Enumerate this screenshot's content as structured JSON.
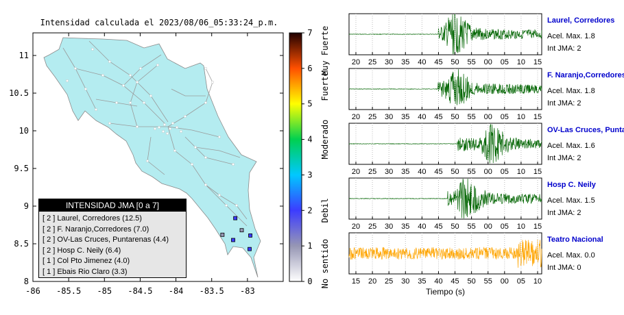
{
  "header": {
    "title": "Intensidad calculada el 2023/08/06_05:33:24_p.m."
  },
  "colors": {
    "land": "#b4ecf0",
    "wave_green": "#006400",
    "wave_orange": "#ffa500",
    "station_name": "#0000cc",
    "roads": "#9a9a9a"
  },
  "map": {
    "xlim": [
      -86,
      -82.5
    ],
    "ylim": [
      8,
      11.3
    ],
    "x_ticks": [
      "-86",
      "-85.5",
      "-85",
      "-84.5",
      "-84",
      "-83.5",
      "-83"
    ],
    "y_ticks": [
      "8",
      "8.5",
      "9",
      "9.5",
      "10",
      "10.5",
      "11"
    ]
  },
  "colorbar": {
    "range": [
      0,
      7
    ],
    "ticks": [
      "0",
      "1",
      "2",
      "3",
      "4",
      "5",
      "6",
      "7"
    ],
    "bands": [
      {
        "label": "No sentido",
        "center": 0.5
      },
      {
        "label": "Debil",
        "center": 2.0
      },
      {
        "label": "Moderado",
        "center": 4.0
      },
      {
        "label": "Fuerte",
        "center": 5.5
      },
      {
        "label": "Muy Fuerte",
        "center": 6.5
      }
    ]
  },
  "legend": {
    "title": "INTENSIDAD JMA [0 a 7]",
    "rows": [
      "[ 2 ]  Laurel, Corredores (12.5)",
      "[ 2 ]  F. Naranjo,Corredores (7.0)",
      "[ 2 ]  OV-Las Cruces, Puntarenas (4.4)",
      "[ 2 ]  Hosp C. Neily (6.4)",
      "[ 1 ]  Col Pto Jimenez (4.0)",
      "[ 1 ]  Ebais Rio Claro (3.3)"
    ]
  },
  "chart_data": [
    {
      "type": "scatter",
      "title": "Intensidad calculada el 2023/08/06_05:33:24_p.m.",
      "xlabel": "",
      "ylabel": "",
      "xlim": [
        -86,
        -82.5
      ],
      "ylim": [
        8,
        11.3
      ],
      "series": [
        {
          "name": "Laurel, Corredores",
          "x": [
            -82.97
          ],
          "y": [
            8.43
          ],
          "intensity": [
            2
          ]
        },
        {
          "name": "F. Naranjo,Corredores",
          "x": [
            -82.96
          ],
          "y": [
            8.61
          ],
          "intensity": [
            2
          ]
        },
        {
          "name": "OV-Las Cruces, Puntarenas",
          "x": [
            -83.17
          ],
          "y": [
            8.84
          ],
          "intensity": [
            2
          ]
        },
        {
          "name": "Hosp C. Neily",
          "x": [
            -83.2
          ],
          "y": [
            8.55
          ],
          "intensity": [
            2
          ]
        },
        {
          "name": "Col Pto Jimenez",
          "x": [
            -83.35
          ],
          "y": [
            8.62
          ],
          "intensity": [
            1
          ]
        },
        {
          "name": "Ebais Rio Claro",
          "x": [
            -83.08
          ],
          "y": [
            8.68
          ],
          "intensity": [
            1
          ]
        }
      ]
    },
    {
      "type": "line",
      "title": "Laurel, Corredores",
      "annotations": [
        "Acel. Max. 1.8",
        "Int JMA: 2"
      ],
      "xtick_labels": [
        "20",
        "25",
        "30",
        "35",
        "40",
        "45",
        "50",
        "55",
        "00",
        "05",
        "10",
        "15"
      ],
      "onset": 37,
      "peak_at": 43,
      "peak": 1.8
    },
    {
      "type": "line",
      "title": "F. Naranjo,Corredores",
      "annotations": [
        "Acel. Max. 1.8",
        "Int JMA: 2"
      ],
      "xtick_labels": [
        "20",
        "25",
        "30",
        "35",
        "40",
        "45",
        "50",
        "55",
        "00",
        "05",
        "10",
        "15"
      ],
      "onset": 37,
      "peak_at": 43,
      "peak": 1.8
    },
    {
      "type": "line",
      "title": "OV-Las Cruces, Puntar",
      "annotations": [
        "Acel. Max. 1.6",
        "Int JMA: 2"
      ],
      "xtick_labels": [
        "20",
        "25",
        "30",
        "35",
        "40",
        "45",
        "50",
        "55",
        "00",
        "05",
        "10",
        "15"
      ],
      "onset": 45,
      "peak_at": 58,
      "peak": 1.6
    },
    {
      "type": "line",
      "title": "Hosp C. Neily",
      "annotations": [
        "Acel. Max. 1.5",
        "Int JMA: 2"
      ],
      "xtick_labels": [
        "20",
        "25",
        "30",
        "35",
        "40",
        "45",
        "50",
        "55",
        "00",
        "05",
        "10",
        "15"
      ],
      "onset": 41,
      "peak_at": 48,
      "peak": 1.5
    },
    {
      "type": "line",
      "title": "Teatro Nacional",
      "annotations": [
        "Acel. Max. 0.0",
        "Int JMA: 0"
      ],
      "xtick_labels": [
        "15",
        "20",
        "25",
        "30",
        "35",
        "40",
        "45",
        "50",
        "55",
        "00",
        "05",
        "10"
      ],
      "xlabel": "Tiempo (s)",
      "onset": 0,
      "peak_at": 70,
      "peak": 0.0
    }
  ]
}
